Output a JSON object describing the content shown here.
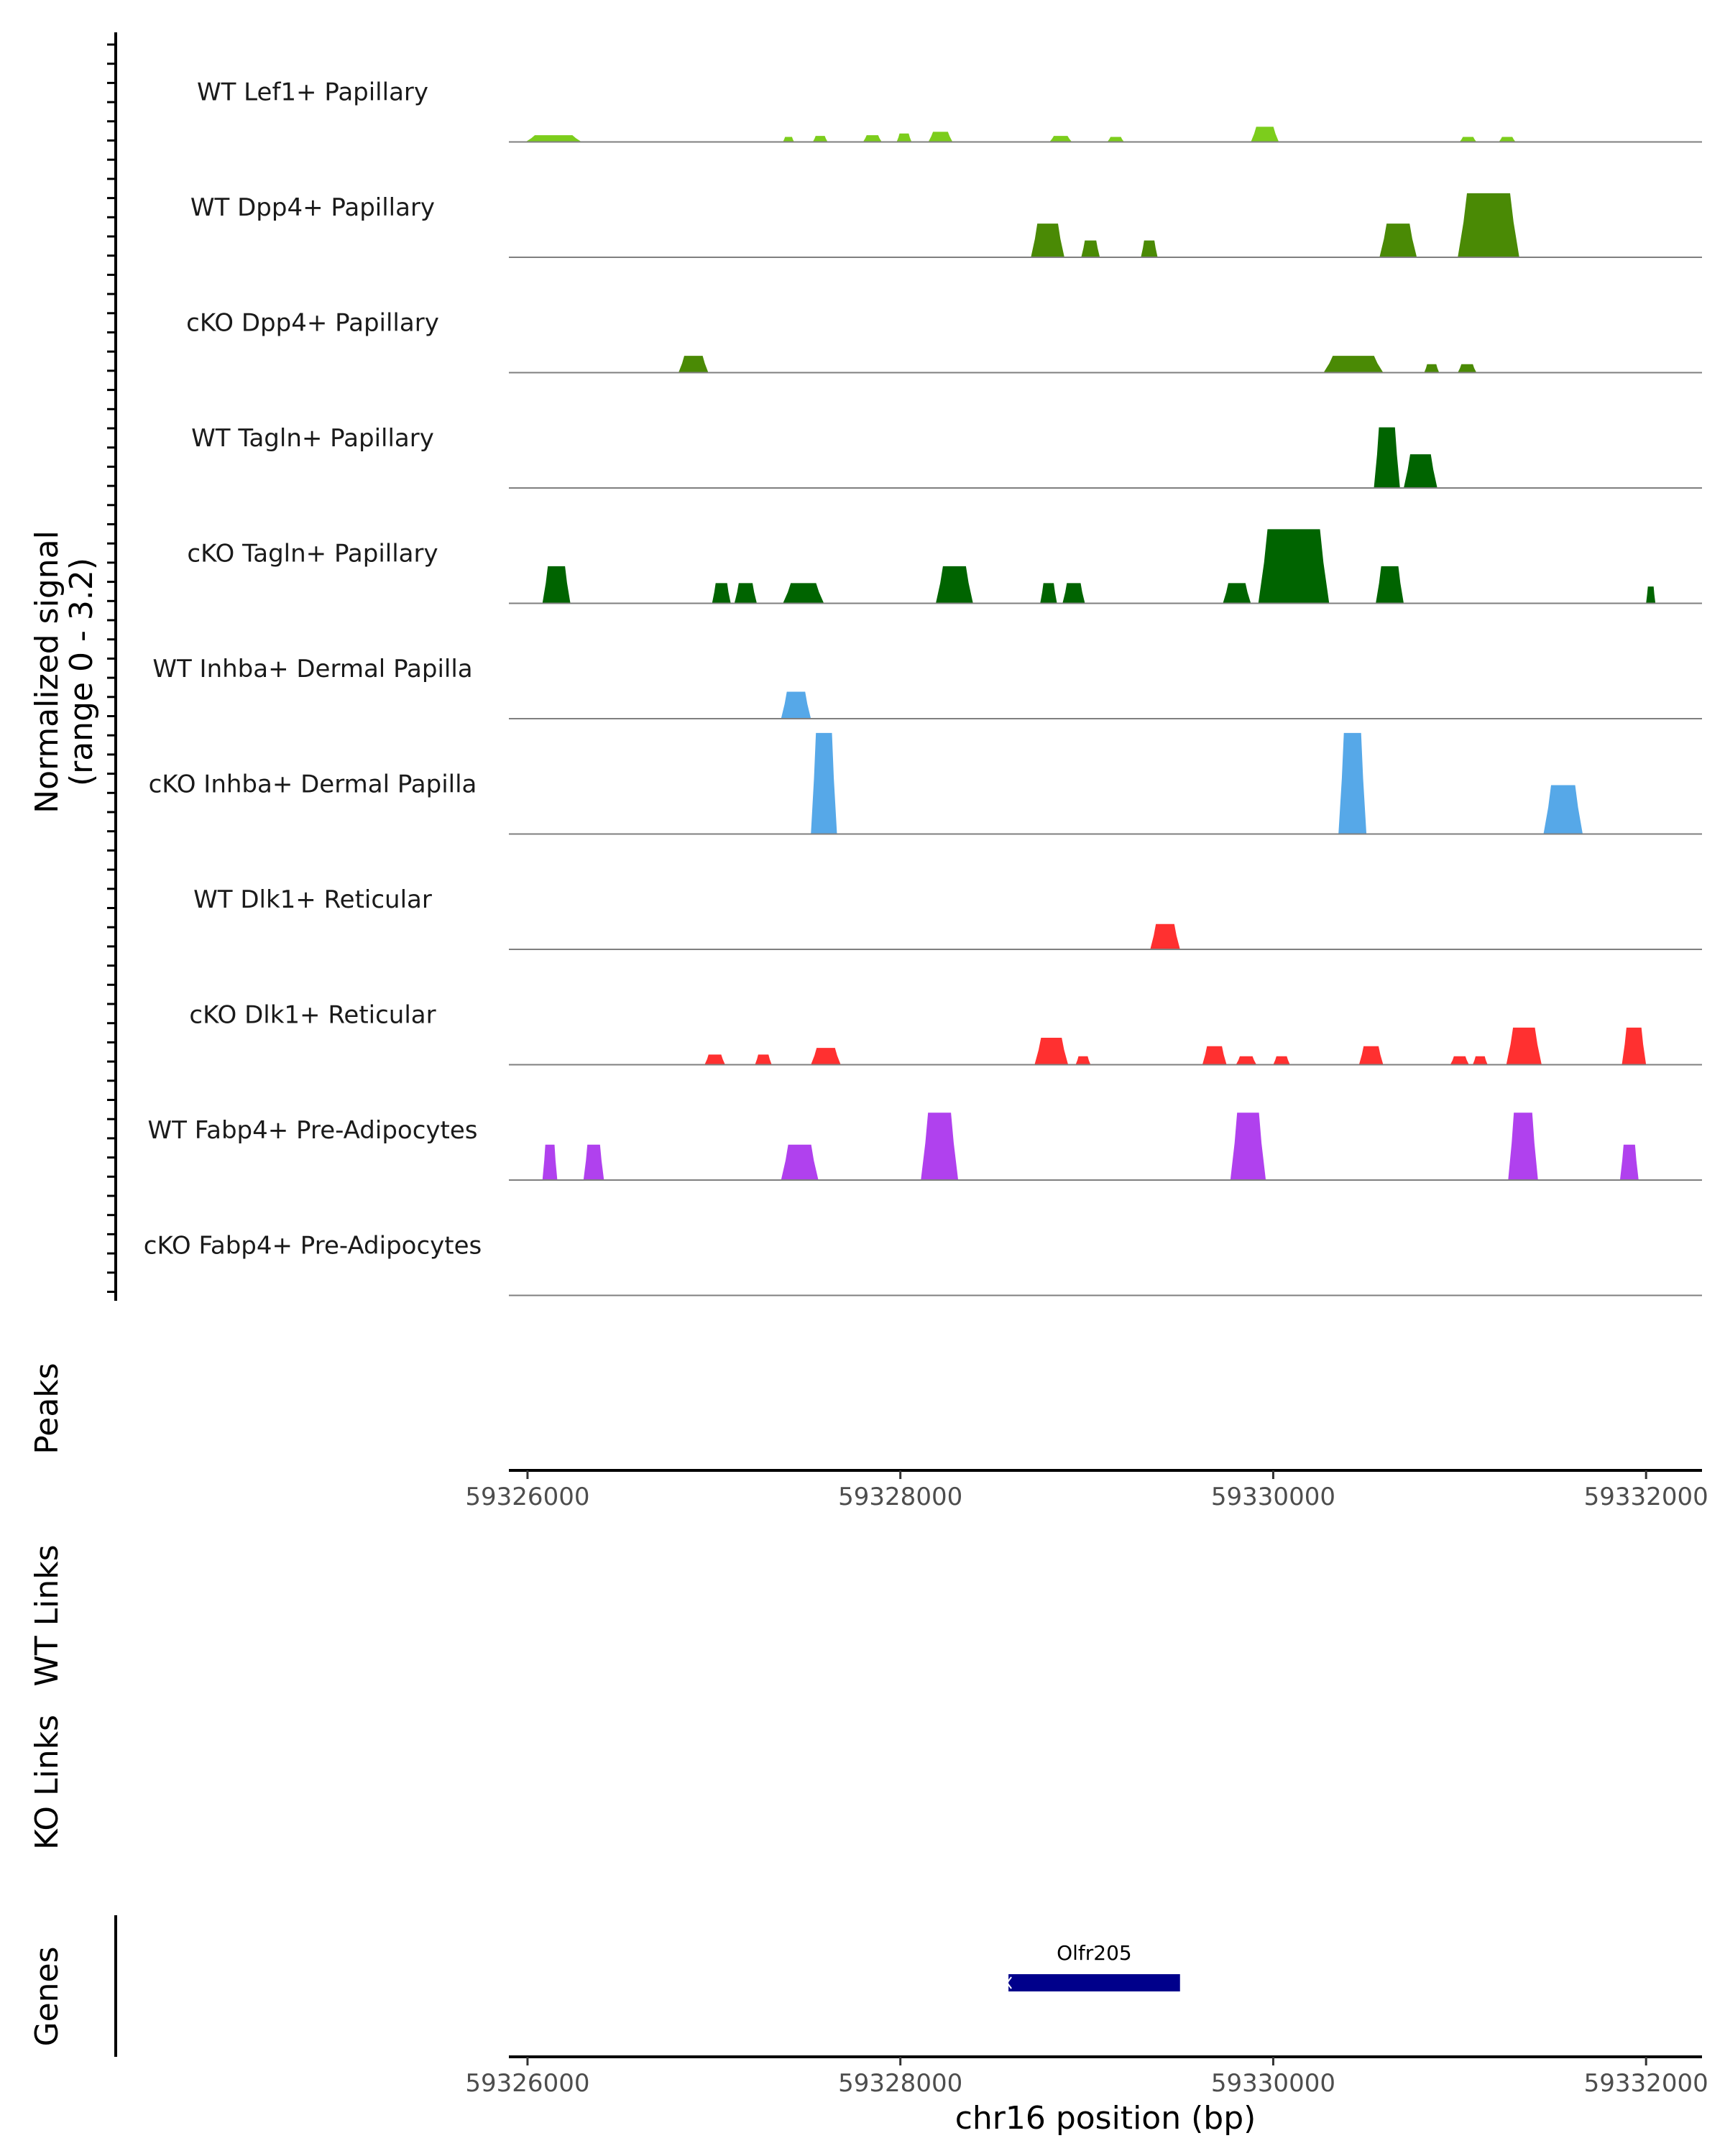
{
  "chart_data": {
    "type": "area",
    "title": "",
    "xlabel": "chr16 position (bp)",
    "ylabel_line1": "Normalized signal",
    "ylabel_line2": "(range 0 - 3.2)",
    "xlim": [
      59325900,
      59332300
    ],
    "ylim": [
      0,
      3.2
    ],
    "ticks": [
      59326000,
      59328000,
      59330000,
      59332000
    ],
    "tick_labels": [
      "59326000",
      "59328000",
      "59330000",
      "59332000"
    ],
    "panel_labels": {
      "peaks": "Peaks",
      "wt_links": "WT Links",
      "ko_links": "KO Links",
      "genes": "Genes"
    },
    "series": [
      {
        "name": "WT Lef1+ Papillary",
        "color": "#7CCD1C",
        "peaks": [
          [
            59325990,
            59326290,
            0.2
          ],
          [
            59327370,
            59327430,
            0.15
          ],
          [
            59327530,
            59327610,
            0.18
          ],
          [
            59327800,
            59327900,
            0.2
          ],
          [
            59327980,
            59328060,
            0.25
          ],
          [
            59328150,
            59328280,
            0.3
          ],
          [
            59328800,
            59328920,
            0.18
          ],
          [
            59329110,
            59329200,
            0.15
          ],
          [
            59329880,
            59330030,
            0.45
          ],
          [
            59331000,
            59331090,
            0.15
          ],
          [
            59331210,
            59331300,
            0.15
          ]
        ]
      },
      {
        "name": "WT Dpp4+ Papillary",
        "color": "#4A8A05",
        "peaks": [
          [
            59328700,
            59328880,
            1.0
          ],
          [
            59328970,
            59329070,
            0.5
          ],
          [
            59329290,
            59329380,
            0.5
          ],
          [
            59330570,
            59330770,
            1.0
          ],
          [
            59330990,
            59331320,
            1.9
          ]
        ]
      },
      {
        "name": "cKO Dpp4+ Papillary",
        "color": "#4A8A05",
        "peaks": [
          [
            59326810,
            59326970,
            0.5
          ],
          [
            59330270,
            59330590,
            0.5
          ],
          [
            59330810,
            59330890,
            0.25
          ],
          [
            59330990,
            59331090,
            0.25
          ]
        ]
      },
      {
        "name": "WT Tagln+ Papillary",
        "color": "#006400",
        "peaks": [
          [
            59330540,
            59330680,
            1.8
          ],
          [
            59330700,
            59330880,
            1.0
          ]
        ]
      },
      {
        "name": "cKO Tagln+ Papillary",
        "color": "#006400",
        "peaks": [
          [
            59326080,
            59326230,
            1.1
          ],
          [
            59326990,
            59327090,
            0.6
          ],
          [
            59327110,
            59327230,
            0.6
          ],
          [
            59327370,
            59327590,
            0.6
          ],
          [
            59328190,
            59328390,
            1.1
          ],
          [
            59328750,
            59328840,
            0.6
          ],
          [
            59328870,
            59328990,
            0.6
          ],
          [
            59329730,
            59329880,
            0.6
          ],
          [
            59329920,
            59330300,
            2.2
          ],
          [
            59330550,
            59330700,
            1.1
          ],
          [
            59332000,
            59332050,
            0.5
          ]
        ]
      },
      {
        "name": "WT Inhba+ Dermal Papilla",
        "color": "#56A8E8",
        "peaks": [
          [
            59327360,
            59327520,
            0.8
          ]
        ]
      },
      {
        "name": "cKO Inhba+ Dermal Papilla",
        "color": "#56A8E8",
        "peaks": [
          [
            59327520,
            59327660,
            3.0
          ],
          [
            59330350,
            59330500,
            3.0
          ],
          [
            59331450,
            59331660,
            1.45
          ]
        ]
      },
      {
        "name": "WT Dlk1+ Reticular",
        "color": "#FF3030",
        "peaks": [
          [
            59329340,
            59329500,
            0.75
          ]
        ]
      },
      {
        "name": "cKO Dlk1+ Reticular",
        "color": "#FF3030",
        "peaks": [
          [
            59326950,
            59327060,
            0.3
          ],
          [
            59327220,
            59327310,
            0.3
          ],
          [
            59327520,
            59327680,
            0.5
          ],
          [
            59328720,
            59328900,
            0.8
          ],
          [
            59328940,
            59329020,
            0.25
          ],
          [
            59329620,
            59329750,
            0.55
          ],
          [
            59329800,
            59329910,
            0.25
          ],
          [
            59330000,
            59330090,
            0.25
          ],
          [
            59330460,
            59330590,
            0.55
          ],
          [
            59330950,
            59331050,
            0.25
          ],
          [
            59331070,
            59331150,
            0.25
          ],
          [
            59331250,
            59331440,
            1.1
          ],
          [
            59331870,
            59332000,
            1.1
          ]
        ]
      },
      {
        "name": "WT Fabp4+ Pre-Adipocytes",
        "color": "#B041EE",
        "peaks": [
          [
            59326080,
            59326160,
            1.05
          ],
          [
            59326300,
            59326410,
            1.05
          ],
          [
            59327360,
            59327560,
            1.05
          ],
          [
            59328110,
            59328310,
            2.0
          ],
          [
            59329770,
            59329960,
            2.0
          ],
          [
            59331260,
            59331420,
            2.0
          ],
          [
            59331860,
            59331960,
            1.05
          ]
        ]
      },
      {
        "name": "cKO Fabp4+ Pre-Adipocytes",
        "color": "#B041EE",
        "peaks": []
      }
    ],
    "genes": [
      {
        "name": "Olfr205",
        "start": 59328580,
        "end": 59329500,
        "color": "#00008B"
      }
    ]
  }
}
